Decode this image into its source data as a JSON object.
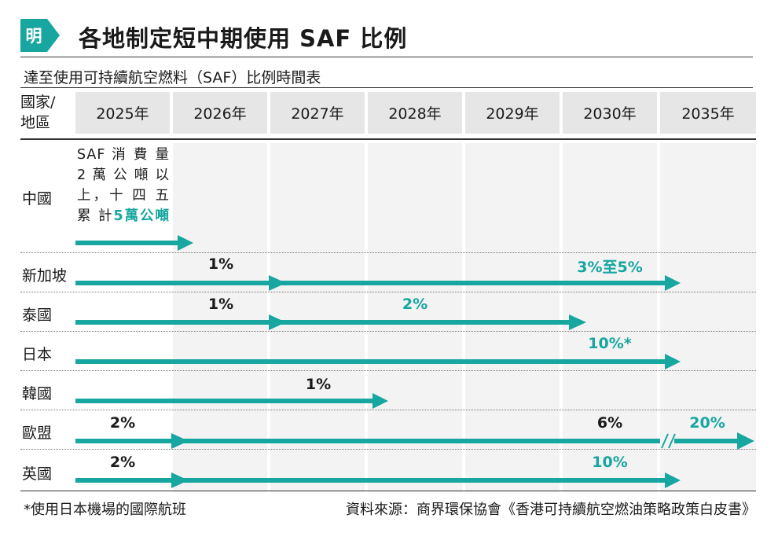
{
  "header": {
    "logo_char": "明",
    "title": "各地制定短中期使用 SAF 比例",
    "subtitle": "達至使用可持續航空燃料（SAF）比例時間表"
  },
  "table": {
    "region_header_line1": "國家/",
    "region_header_line2": "地區",
    "years": [
      "2025年",
      "2026年",
      "2027年",
      "2028年",
      "2029年",
      "2030年",
      "2035年"
    ],
    "rows": [
      {
        "region": "中國",
        "note_text": "SAF 消 費 量 2 萬 公 噸 以 上，十 四 五 累 計",
        "note_highlight": "5萬公噸"
      },
      {
        "region": "新加坡"
      },
      {
        "region": "泰國"
      },
      {
        "region": "日本"
      },
      {
        "region": "韓國"
      },
      {
        "region": "歐盟"
      },
      {
        "region": "英國"
      }
    ]
  },
  "chart_data": {
    "type": "table",
    "title": "各地制定短中期使用 SAF 比例",
    "subtitle": "達至使用可持續航空燃料（SAF）比例時間表",
    "columns": [
      "2025年",
      "2026年",
      "2027年",
      "2028年",
      "2029年",
      "2030年",
      "2035年"
    ],
    "series": [
      {
        "name": "中國",
        "targets": [
          {
            "year": 2025,
            "value": "SAF消費量2萬公噸以上，十四五累計5萬公噸"
          }
        ],
        "arrow_to": 2025
      },
      {
        "name": "新加坡",
        "targets": [
          {
            "year": 2026,
            "value": "1%"
          },
          {
            "year": 2030,
            "value": "3%至5%"
          }
        ],
        "arrow_to": 2030
      },
      {
        "name": "泰國",
        "targets": [
          {
            "year": 2026,
            "value": "1%"
          },
          {
            "year": 2028,
            "value": "2%"
          }
        ],
        "arrow_to": 2029
      },
      {
        "name": "日本",
        "targets": [
          {
            "year": 2030,
            "value": "10%*"
          }
        ],
        "arrow_to": 2030
      },
      {
        "name": "韓國",
        "targets": [
          {
            "year": 2027,
            "value": "1%"
          }
        ],
        "arrow_to": 2027
      },
      {
        "name": "歐盟",
        "targets": [
          {
            "year": 2025,
            "value": "2%"
          },
          {
            "year": 2030,
            "value": "6%"
          },
          {
            "year": 2035,
            "value": "20%"
          }
        ],
        "arrow_to": 2035
      },
      {
        "name": "英國",
        "targets": [
          {
            "year": 2025,
            "value": "2%"
          },
          {
            "year": 2030,
            "value": "10%"
          }
        ],
        "arrow_to": 2030
      }
    ]
  },
  "labels": {
    "sg_2026": "1%",
    "sg_2030": "3%至5%",
    "th_2026": "1%",
    "th_2028": "2%",
    "jp_2030": "10%*",
    "kr_2027": "1%",
    "eu_2025": "2%",
    "eu_2030": "6%",
    "eu_2035": "20%",
    "uk_2025": "2%",
    "uk_2030": "10%"
  },
  "colors": {
    "accent": "#17a6a0",
    "header_bg": "#e6e6e6",
    "column_bg": "#f3f3f3"
  },
  "footer": {
    "footnote": "*使用日本機場的國際航班",
    "source": "資料來源：商界環保協會《香港可持續航空燃油策略政策白皮書》"
  }
}
